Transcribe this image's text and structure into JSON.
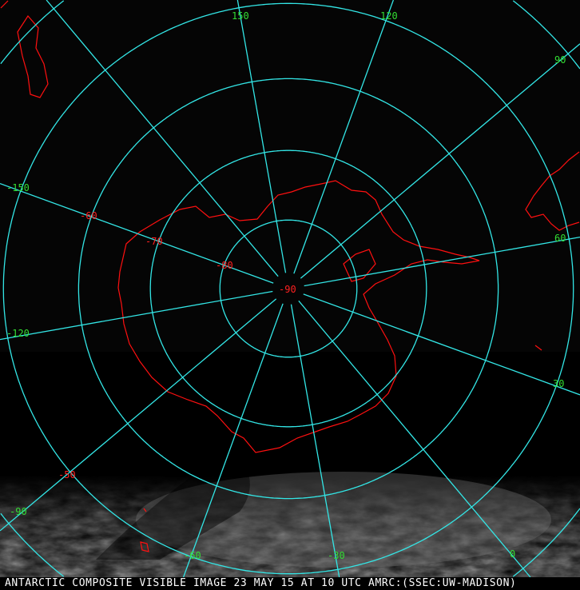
{
  "caption": "ANTARCTIC COMPOSITE VISIBLE IMAGE 23 MAY 15 AT 10 UTC AMRC:(SSEC:UW-MADISON)",
  "colors": {
    "grid": "#33e6e6",
    "coast": "#ff1010",
    "lon_label": "#33dd33",
    "lat_label": "#ff2020",
    "background": "#050505",
    "cloud": "#9a9a9a"
  },
  "projection": "south-polar-stereographic",
  "longitude_labels": [
    {
      "lon": 150,
      "text": "150"
    },
    {
      "lon": 120,
      "text": "120"
    },
    {
      "lon": 90,
      "text": "90"
    },
    {
      "lon": 60,
      "text": "60"
    },
    {
      "lon": 30,
      "text": "30"
    },
    {
      "lon": 0,
      "text": "0"
    },
    {
      "lon": -30,
      "text": "-30"
    },
    {
      "lon": -60,
      "text": "-60"
    },
    {
      "lon": -90,
      "text": "-90"
    },
    {
      "lon": -120,
      "text": "-120"
    },
    {
      "lon": -150,
      "text": "-150"
    }
  ],
  "latitude_labels": [
    {
      "lat": -90,
      "text": "-90"
    },
    {
      "lat": -80,
      "text": "-80"
    },
    {
      "lat": -70,
      "text": "-70"
    },
    {
      "lat": -60,
      "text": "-60"
    },
    {
      "lat": -50,
      "text": "-50"
    }
  ],
  "latitude_circles": [
    -80,
    -70,
    -60,
    -50,
    -40
  ]
}
